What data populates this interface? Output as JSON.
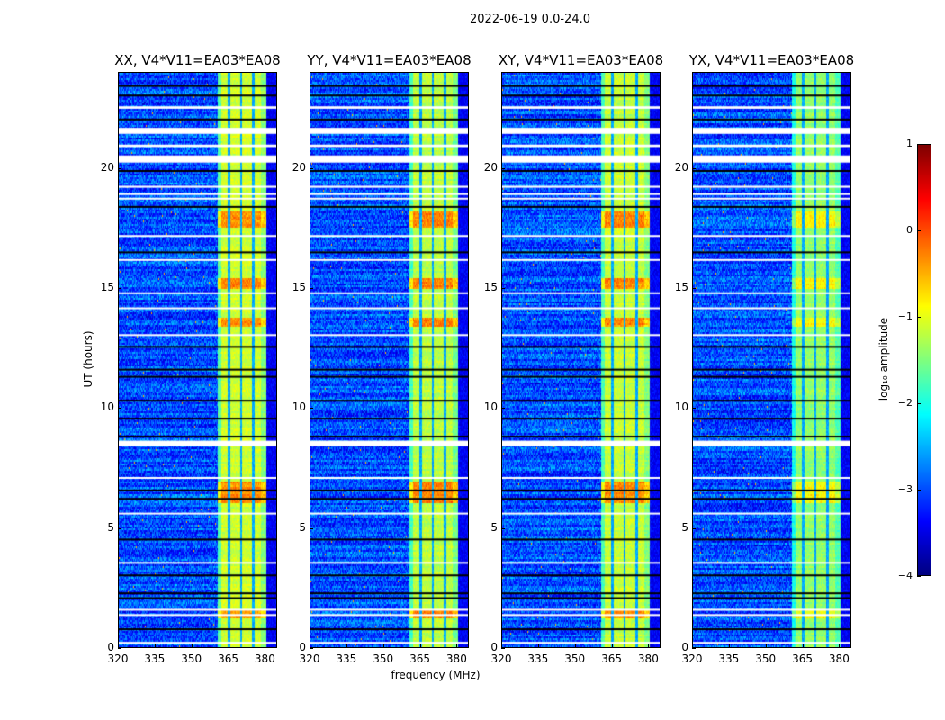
{
  "chart_data": {
    "type": "heatmap",
    "title": "2022-06-19 0.0-24.0",
    "xlabel": "frequency (MHz)",
    "ylabel": "UT (hours)",
    "xlim": [
      320,
      385
    ],
    "ylim": [
      0,
      24
    ],
    "xticks": [
      "320",
      "335",
      "350",
      "365",
      "380"
    ],
    "xtick_values": [
      320,
      335,
      350,
      365,
      380
    ],
    "yticks": [
      "0",
      "5",
      "10",
      "15",
      "20"
    ],
    "ytick_values": [
      0,
      5,
      10,
      15,
      20
    ],
    "panels": [
      {
        "title": "XX, V4*V11=EA03*EA08",
        "band_level": -1.1,
        "hot_boost": 0.9
      },
      {
        "title": "YY, V4*V11=EA03*EA08",
        "band_level": -1.2,
        "hot_boost": 1.1
      },
      {
        "title": "XY, V4*V11=EA03*EA08",
        "band_level": -1.15,
        "hot_boost": 1.0
      },
      {
        "title": "YX, V4*V11=EA03*EA08",
        "band_level": -1.4,
        "hot_boost": 0.6
      }
    ],
    "band_mhz": [
      361,
      381
    ],
    "band_channel_edges_mhz": [
      365.5,
      370.5,
      375.5
    ],
    "background_level": -3.0,
    "hot_hours": [
      [
        6.0,
        6.9
      ],
      [
        1.2,
        1.6
      ],
      [
        13.4,
        13.8
      ],
      [
        15.0,
        15.4
      ],
      [
        17.5,
        18.2
      ]
    ],
    "flagged_hours": [
      [
        22.5,
        22.6
      ],
      [
        21.45,
        21.7
      ],
      [
        20.9,
        21.0
      ],
      [
        20.25,
        20.55
      ],
      [
        19.2,
        19.28
      ],
      [
        18.9,
        18.97
      ],
      [
        18.72,
        18.78
      ],
      [
        17.15,
        17.22
      ],
      [
        16.15,
        16.22
      ],
      [
        14.76,
        14.83
      ],
      [
        14.13,
        14.2
      ],
      [
        13.02,
        13.08
      ],
      [
        8.4,
        8.63
      ],
      [
        7.05,
        7.11
      ],
      [
        5.56,
        5.62
      ],
      [
        3.49,
        3.56
      ],
      [
        1.53,
        1.6
      ],
      [
        1.32,
        1.38
      ],
      [
        0.16,
        0.22
      ]
    ],
    "dropout_hours": [
      23.45,
      23.05,
      22.05,
      19.9,
      18.4,
      16.5,
      12.55,
      11.6,
      11.3,
      10.3,
      9.55,
      8.8,
      6.55,
      6.2,
      4.5,
      3.0,
      2.25,
      2.05,
      0.75
    ],
    "colorbar": {
      "label": "log₁₀ amplitude",
      "range": [
        -4,
        1
      ],
      "colormap": "jet",
      "ticks": [
        "1",
        "0",
        "−1",
        "−2",
        "−3",
        "−4"
      ],
      "tick_values": [
        1,
        0,
        -1,
        -2,
        -3,
        -4
      ]
    }
  }
}
